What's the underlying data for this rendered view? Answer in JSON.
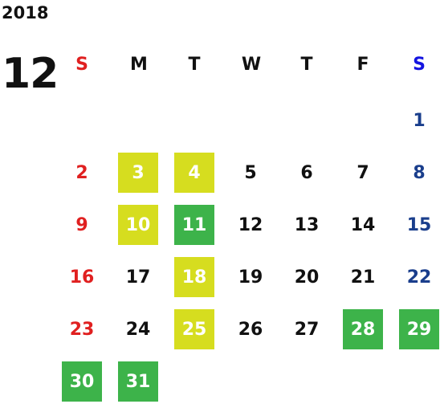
{
  "calendar": {
    "year": "2018",
    "month": "12",
    "weekdays": [
      "S",
      "M",
      "T",
      "W",
      "T",
      "F",
      "S"
    ],
    "weeks": [
      [
        "",
        "",
        "",
        "",
        "",
        "",
        "1"
      ],
      [
        "2",
        "3",
        "4",
        "5",
        "6",
        "7",
        "8"
      ],
      [
        "9",
        "10",
        "11",
        "12",
        "13",
        "14",
        "15"
      ],
      [
        "16",
        "17",
        "18",
        "19",
        "20",
        "21",
        "22"
      ],
      [
        "23",
        "24",
        "25",
        "26",
        "27",
        "28",
        "29"
      ],
      [
        "30",
        "31",
        "",
        "",
        "",
        "",
        ""
      ]
    ],
    "highlight_yellow_days": [
      "3",
      "4",
      "10",
      "18",
      "25"
    ],
    "highlight_green_days": [
      "11",
      "28",
      "29",
      "30",
      "31"
    ],
    "colors": {
      "sunday": "#e02020",
      "saturday_header": "#1414e0",
      "saturday": "#1a3e8c",
      "yellow": "#d6dd1f",
      "green": "#3db34a"
    }
  }
}
